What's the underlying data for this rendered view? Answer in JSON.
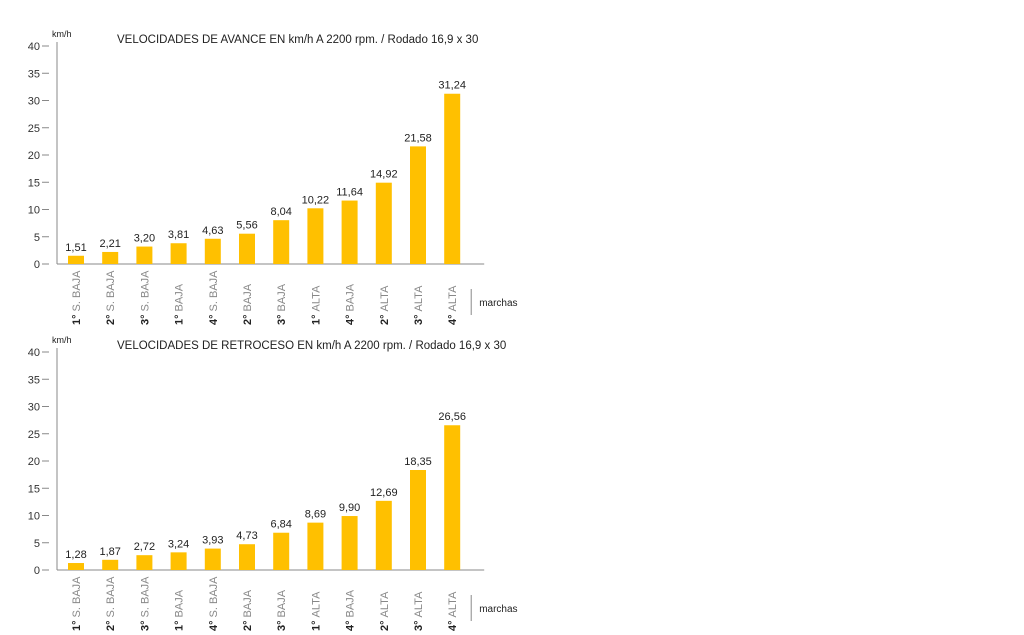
{
  "colors": {
    "bar": "#FFC000",
    "axis": "#888888",
    "tick_text": "#333333",
    "label_bold": "#222222",
    "label_light": "#888888"
  },
  "chart_data": [
    {
      "type": "bar",
      "title": "VELOCIDADES DE AVANCE EN km/h A 2200 rpm. / Rodado 16,9 x 30",
      "ylabel": "km/h",
      "xlabel": "marchas",
      "ylim": [
        0,
        40
      ],
      "yticks": [
        "0",
        "5",
        "10",
        "15",
        "20",
        "25",
        "30",
        "35",
        "40"
      ],
      "categories": [
        {
          "num": "1°",
          "name": "S. BAJA"
        },
        {
          "num": "2°",
          "name": "S. BAJA"
        },
        {
          "num": "3°",
          "name": "S. BAJA"
        },
        {
          "num": "1°",
          "name": "BAJA"
        },
        {
          "num": "4°",
          "name": "S. BAJA"
        },
        {
          "num": "2°",
          "name": "BAJA"
        },
        {
          "num": "3°",
          "name": "BAJA"
        },
        {
          "num": "1°",
          "name": "ALTA"
        },
        {
          "num": "4°",
          "name": "BAJA"
        },
        {
          "num": "2°",
          "name": "ALTA"
        },
        {
          "num": "3°",
          "name": "ALTA"
        },
        {
          "num": "4°",
          "name": "ALTA"
        }
      ],
      "values": [
        1.51,
        2.21,
        3.2,
        3.81,
        4.63,
        5.56,
        8.04,
        10.22,
        11.64,
        14.92,
        21.58,
        31.24
      ],
      "value_labels": [
        "1,51",
        "2,21",
        "3,20",
        "3,81",
        "4,63",
        "5,56",
        "8,04",
        "10,22",
        "11,64",
        "14,92",
        "21,58",
        "31,24"
      ]
    },
    {
      "type": "bar",
      "title": "VELOCIDADES DE RETROCESO EN km/h A 2200 rpm. / Rodado 16,9 x 30",
      "ylabel": "km/h",
      "xlabel": "marchas",
      "ylim": [
        0,
        40
      ],
      "yticks": [
        "0",
        "5",
        "10",
        "15",
        "20",
        "25",
        "30",
        "35",
        "40"
      ],
      "categories": [
        {
          "num": "1°",
          "name": "S. BAJA"
        },
        {
          "num": "2°",
          "name": "S. BAJA"
        },
        {
          "num": "3°",
          "name": "S. BAJA"
        },
        {
          "num": "1°",
          "name": "BAJA"
        },
        {
          "num": "4°",
          "name": "S. BAJA"
        },
        {
          "num": "2°",
          "name": "BAJA"
        },
        {
          "num": "3°",
          "name": "BAJA"
        },
        {
          "num": "1°",
          "name": "ALTA"
        },
        {
          "num": "4°",
          "name": "BAJA"
        },
        {
          "num": "2°",
          "name": "ALTA"
        },
        {
          "num": "3°",
          "name": "ALTA"
        },
        {
          "num": "4°",
          "name": "ALTA"
        }
      ],
      "values": [
        1.28,
        1.87,
        2.72,
        3.24,
        3.93,
        4.73,
        6.84,
        8.69,
        9.9,
        12.69,
        18.35,
        26.56
      ],
      "value_labels": [
        "1,28",
        "1,87",
        "2,72",
        "3,24",
        "3,93",
        "4,73",
        "6,84",
        "8,69",
        "9,90",
        "12,69",
        "18,35",
        "26,56"
      ]
    }
  ]
}
